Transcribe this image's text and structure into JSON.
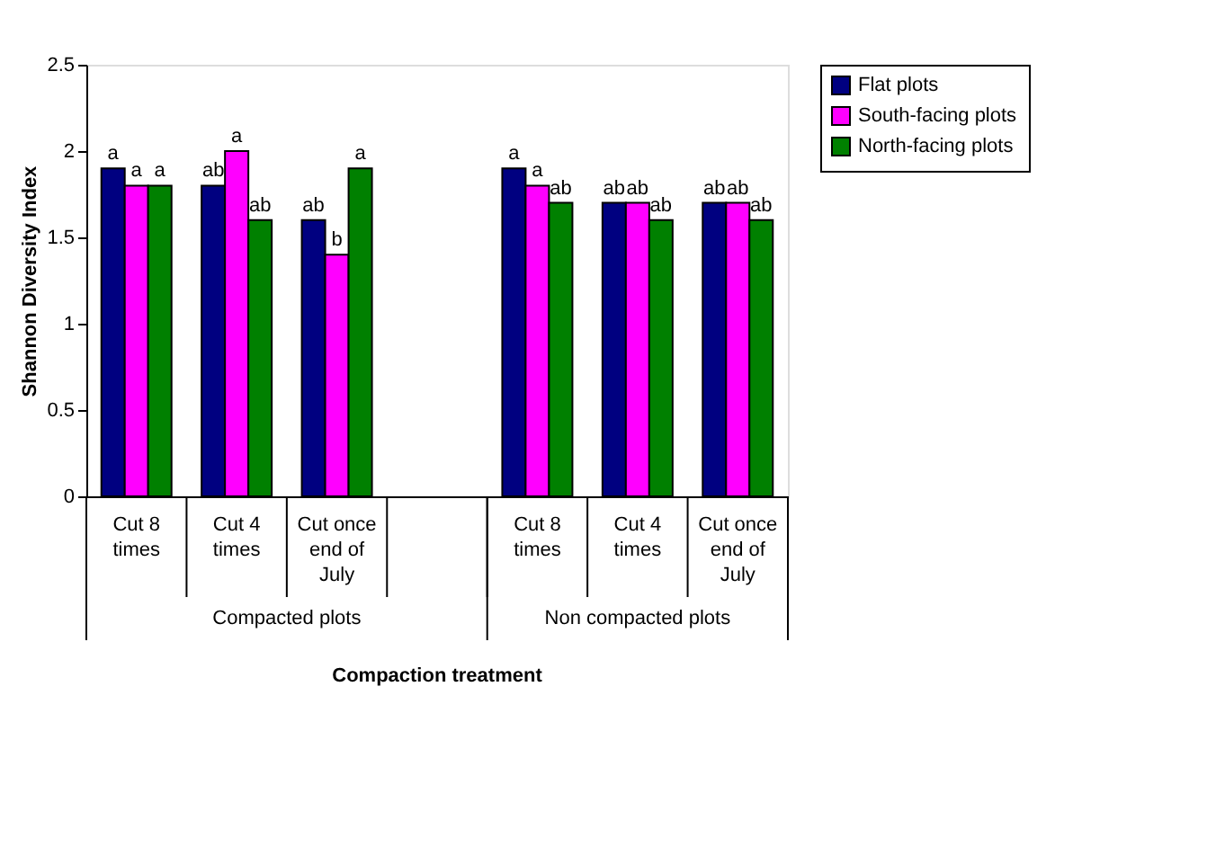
{
  "chart_data": {
    "type": "bar",
    "xlabel": "Compaction treatment",
    "ylabel": "Shannon Diversity Index",
    "categories": [
      "Cut 8 times",
      "Cut 4 times",
      "Cut once end of July",
      null,
      "Cut 8 times",
      "Cut 4 times",
      "Cut once end of July"
    ],
    "series": [
      {
        "name": "Flat plots",
        "color": "#000080",
        "values": [
          1.9,
          1.8,
          1.6,
          null,
          1.9,
          1.7,
          1.7
        ],
        "value_labels": [
          "a",
          "ab",
          "ab",
          null,
          "a",
          "ab",
          "ab"
        ]
      },
      {
        "name": "South-facing plots",
        "color": "#ff00ff",
        "values": [
          1.8,
          2.0,
          1.4,
          null,
          1.8,
          1.7,
          1.7
        ],
        "value_labels": [
          "a",
          "a",
          "b",
          null,
          "a",
          "ab",
          "ab"
        ]
      },
      {
        "name": "North-facing plots",
        "color": "#008000",
        "values": [
          1.8,
          1.6,
          1.9,
          null,
          1.7,
          1.6,
          1.6
        ],
        "value_labels": [
          "a",
          "ab",
          "a",
          null,
          "ab",
          "ab",
          "ab"
        ]
      }
    ],
    "annotations": [
      "Compacted plots",
      "Non compacted plots"
    ],
    "ylim": [
      0,
      2.5
    ],
    "yticks": [
      0,
      0.5,
      1,
      1.5,
      2,
      2.5
    ],
    "grid": false,
    "legend": "right"
  }
}
